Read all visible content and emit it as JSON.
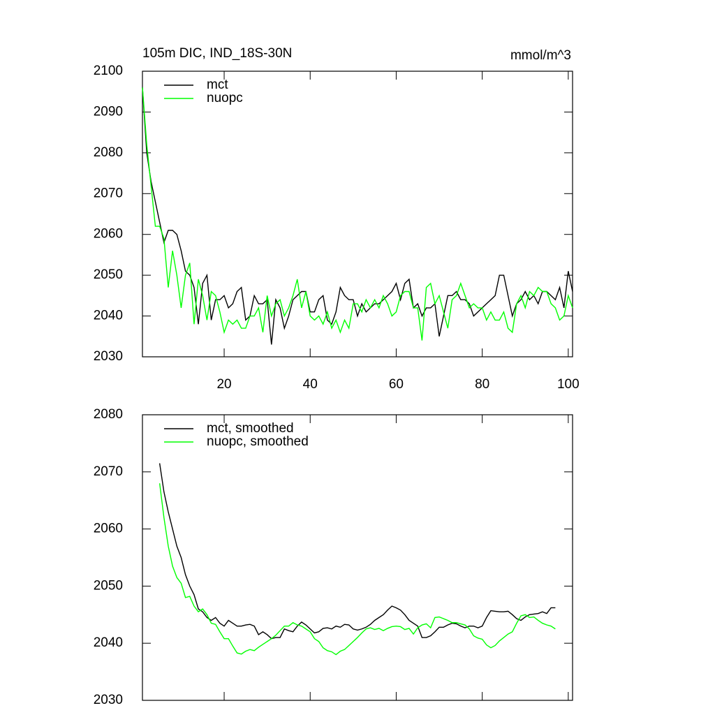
{
  "chart_data": [
    {
      "type": "line",
      "title": "105m DIC, IND_18S-30N",
      "units": "mmol/m^3",
      "x": [
        1,
        2,
        3,
        4,
        5,
        6,
        7,
        8,
        9,
        10,
        11,
        12,
        13,
        14,
        15,
        16,
        17,
        18,
        19,
        20,
        21,
        22,
        23,
        24,
        25,
        26,
        27,
        28,
        29,
        30,
        31,
        32,
        33,
        34,
        35,
        36,
        37,
        38,
        39,
        40,
        41,
        42,
        43,
        44,
        45,
        46,
        47,
        48,
        49,
        50,
        51,
        52,
        53,
        54,
        55,
        56,
        57,
        58,
        59,
        60,
        61,
        62,
        63,
        64,
        65,
        66,
        67,
        68,
        69,
        70,
        71,
        72,
        73,
        74,
        75,
        76,
        77,
        78,
        79,
        80,
        81,
        82,
        83,
        84,
        85,
        86,
        87,
        88,
        89,
        90,
        91,
        92,
        93,
        94,
        95,
        96,
        97,
        98,
        99,
        100,
        101
      ],
      "series": [
        {
          "name": "mct",
          "color": "#000000",
          "values": [
            2096,
            2080,
            2073,
            2068,
            2063,
            2058,
            2061,
            2061,
            2060,
            2056,
            2051,
            2050,
            2047,
            2038,
            2048,
            2050,
            2039,
            2044,
            2044,
            2045,
            2042,
            2043,
            2046,
            2047,
            2039,
            2040,
            2045,
            2043,
            2043,
            2044,
            2033,
            2044,
            2042,
            2037,
            2040,
            2044,
            2045,
            2046,
            2046,
            2041,
            2041,
            2044,
            2045,
            2039,
            2038,
            2041,
            2047,
            2045,
            2044,
            2044,
            2040,
            2043,
            2041,
            2042,
            2043,
            2043,
            2044,
            2045,
            2046,
            2048,
            2044,
            2048,
            2049,
            2042,
            2043,
            2040,
            2042,
            2042,
            2043,
            2035,
            2040,
            2045,
            2045,
            2046,
            2044,
            2044,
            2043,
            2040,
            2041,
            2042,
            2043,
            2044,
            2045,
            2050,
            2050,
            2045,
            2040,
            2043,
            2044,
            2046,
            2044,
            2045,
            2043,
            2046,
            2046,
            2045,
            2044,
            2047,
            2042,
            2051,
            2046
          ]
        },
        {
          "name": "nuopc",
          "color": "#00ff00",
          "values": [
            2096,
            2082,
            2072,
            2062,
            2062,
            2059,
            2047,
            2056,
            2050,
            2042,
            2050,
            2053,
            2038,
            2049,
            2045,
            2039,
            2046,
            2045,
            2041,
            2036,
            2039,
            2038,
            2039,
            2037,
            2037,
            2040,
            2040,
            2042,
            2036,
            2045,
            2040,
            2043,
            2044,
            2040,
            2042,
            2045,
            2049,
            2042,
            2046,
            2040,
            2039,
            2040,
            2038,
            2041,
            2037,
            2039,
            2036,
            2039,
            2037,
            2043,
            2043,
            2041,
            2044,
            2042,
            2044,
            2042,
            2045,
            2043,
            2040,
            2041,
            2045,
            2046,
            2046,
            2042,
            2042,
            2034,
            2047,
            2048,
            2043,
            2045,
            2041,
            2037,
            2044,
            2045,
            2048,
            2045,
            2042,
            2043,
            2042,
            2042,
            2039,
            2041,
            2039,
            2039,
            2041,
            2037,
            2036,
            2043,
            2045,
            2042,
            2046,
            2045,
            2047,
            2046,
            2046,
            2043,
            2042,
            2039,
            2040,
            2045,
            2042
          ]
        }
      ],
      "xlim": [
        1,
        101
      ],
      "xticks": [
        20,
        40,
        60,
        80,
        100
      ],
      "ylim": [
        2030,
        2100
      ],
      "yticks": [
        2030,
        2040,
        2050,
        2060,
        2070,
        2080,
        2090,
        2100
      ],
      "show_xtick_labels": true
    },
    {
      "type": "line",
      "x": [
        5,
        6,
        7,
        8,
        9,
        10,
        11,
        12,
        13,
        14,
        15,
        16,
        17,
        18,
        19,
        20,
        21,
        22,
        23,
        24,
        25,
        26,
        27,
        28,
        29,
        30,
        31,
        32,
        33,
        34,
        35,
        36,
        37,
        38,
        39,
        40,
        41,
        42,
        43,
        44,
        45,
        46,
        47,
        48,
        49,
        50,
        51,
        52,
        53,
        54,
        55,
        56,
        57,
        58,
        59,
        60,
        61,
        62,
        63,
        64,
        65,
        66,
        67,
        68,
        69,
        70,
        71,
        72,
        73,
        74,
        75,
        76,
        77,
        78,
        79,
        80,
        81,
        82,
        83,
        84,
        85,
        86,
        87,
        88,
        89,
        90,
        91,
        92,
        93,
        94,
        95,
        96,
        97
      ],
      "series": [
        {
          "name": "mct, smoothed",
          "color": "#000000",
          "values": [
            2071.5,
            2066.5,
            2063,
            2060,
            2057,
            2055,
            2052,
            2050,
            2048.5,
            2046,
            2045.5,
            2044.5,
            2044,
            2044.5,
            2043.5,
            2043,
            2044,
            2043.5,
            2043,
            2043,
            2043.2,
            2043.3,
            2043,
            2041.5,
            2042,
            2041.5,
            2040.8,
            2041,
            2041,
            2042.5,
            2042.2,
            2042,
            2043,
            2043.7,
            2043.2,
            2042.5,
            2041.8,
            2042,
            2042.6,
            2042.7,
            2042.5,
            2043,
            2042.8,
            2043.3,
            2043.2,
            2042.5,
            2042.3,
            2042.5,
            2042.8,
            2043.3,
            2044,
            2044.5,
            2045,
            2045.8,
            2046.5,
            2046.2,
            2045.8,
            2045,
            2044,
            2043.5,
            2043,
            2041,
            2041,
            2041.3,
            2042,
            2042.8,
            2042.8,
            2043.2,
            2043.5,
            2043.4,
            2043,
            2042.7,
            2043,
            2043,
            2042.7,
            2043,
            2044.5,
            2045.7,
            2045.6,
            2045.5,
            2045.5,
            2045.6,
            2045,
            2044.3,
            2044,
            2044.6,
            2045,
            2045.1,
            2045.2,
            2045.5,
            2045.2,
            2046.2,
            2046.2
          ]
        },
        {
          "name": "nuopc, smoothed",
          "color": "#00ff00",
          "values": [
            2068,
            2062,
            2057,
            2053.5,
            2051.5,
            2050.5,
            2048,
            2048.2,
            2046.5,
            2045.5,
            2046,
            2045,
            2043.5,
            2043.3,
            2042,
            2040.8,
            2040.8,
            2039.5,
            2038.3,
            2038.1,
            2038.6,
            2038.9,
            2038.7,
            2039.3,
            2039.8,
            2040.3,
            2040.8,
            2041.4,
            2042.2,
            2043,
            2043,
            2043.6,
            2043.2,
            2043,
            2042.5,
            2042,
            2040.8,
            2040.3,
            2039.2,
            2038.7,
            2038.5,
            2038,
            2038.6,
            2038.9,
            2039.6,
            2040.3,
            2041,
            2041.8,
            2042.5,
            2042.7,
            2042.4,
            2042.6,
            2042.2,
            2042.6,
            2042.9,
            2043,
            2042.9,
            2042.4,
            2042.6,
            2041.6,
            2042.7,
            2043.2,
            2043.4,
            2042.7,
            2044.5,
            2044.6,
            2044.3,
            2044,
            2043.6,
            2043.6,
            2043.4,
            2043.2,
            2042.5,
            2041.3,
            2040.9,
            2040.7,
            2039.7,
            2039.2,
            2039.6,
            2040.4,
            2041,
            2041.6,
            2042,
            2043.5,
            2044.8,
            2045,
            2044.5,
            2044.6,
            2044,
            2043.5,
            2043.2,
            2043,
            2042.5
          ]
        }
      ],
      "xlim": [
        1,
        101
      ],
      "xticks": [
        20,
        40,
        60,
        80,
        100
      ],
      "ylim": [
        2030,
        2080
      ],
      "yticks": [
        2030,
        2040,
        2050,
        2060,
        2070,
        2080
      ],
      "show_xtick_labels": false
    }
  ]
}
